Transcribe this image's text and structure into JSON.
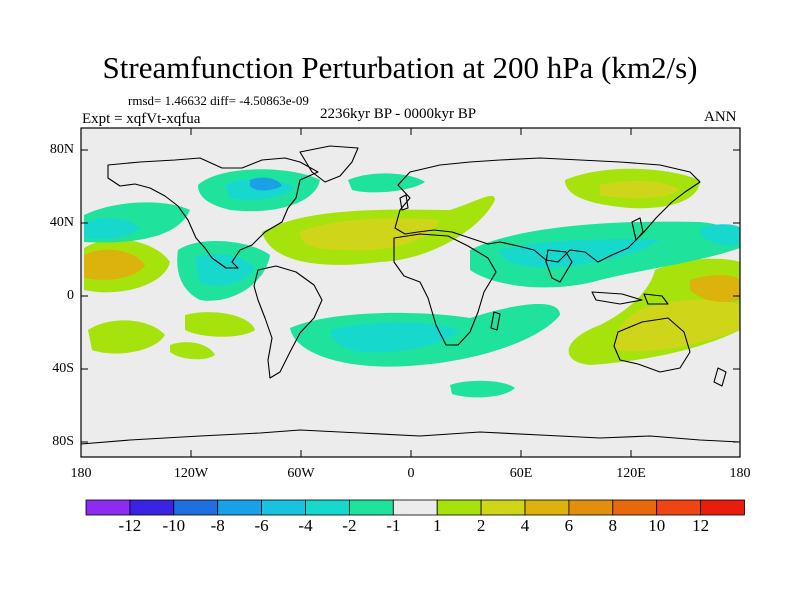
{
  "title": "Streamfunction Perturbation at 200 hPa (km2/s)",
  "stats": "rmsd= 1.46632 diff= -4.50863e-09",
  "experiment": "Expt = xqfVt-xqfua",
  "period": "2236kyr BP - 0000kyr BP",
  "season": "ANN",
  "lat_labels": [
    "80N",
    "40N",
    "0",
    "40S",
    "80S"
  ],
  "lon_labels": [
    "180",
    "120W",
    "60W",
    "0",
    "60E",
    "120E",
    "180"
  ],
  "colorbar": {
    "colors": [
      "#8d2cf0",
      "#3b23e3",
      "#1f6fe0",
      "#1aa0e6",
      "#19c3df",
      "#16d8cd",
      "#1fe39c",
      "#ececec",
      "#a6e30c",
      "#cfd61a",
      "#dcb20c",
      "#e38f0d",
      "#e8680b",
      "#ee4512",
      "#e91c0d"
    ],
    "labels": [
      "-12",
      "-10",
      "-8",
      "-6",
      "-4",
      "-2",
      "-1",
      "1",
      "2",
      "4",
      "6",
      "8",
      "10",
      "12"
    ]
  }
}
